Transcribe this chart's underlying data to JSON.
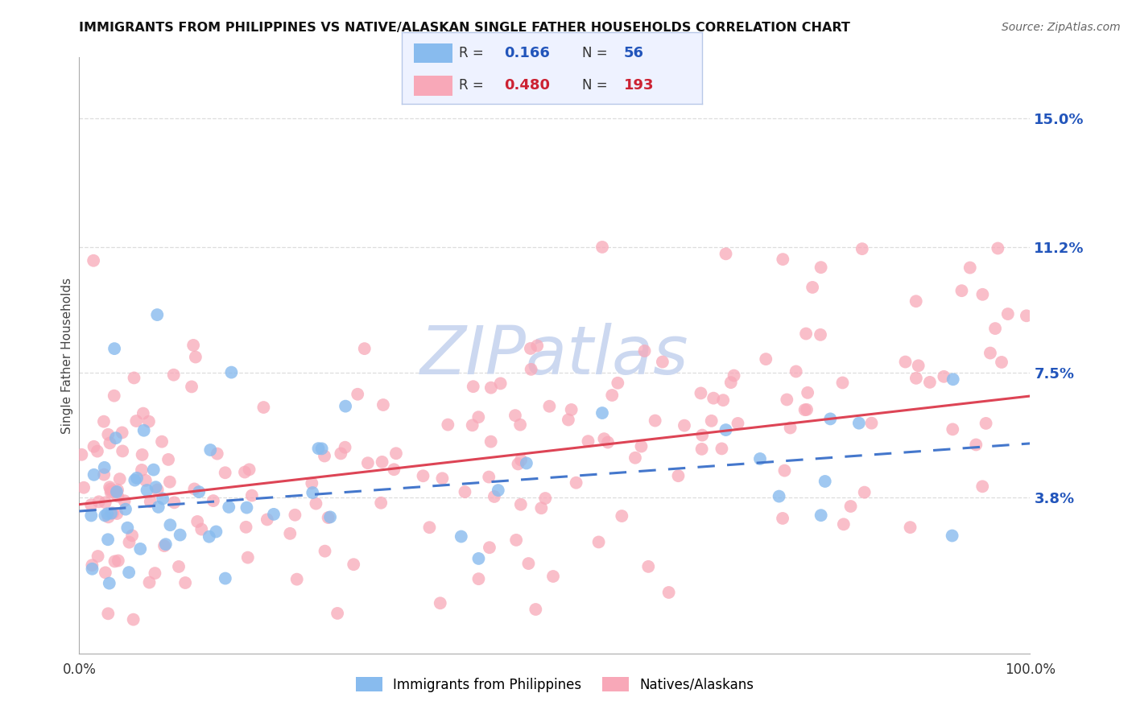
{
  "title": "IMMIGRANTS FROM PHILIPPINES VS NATIVE/ALASKAN SINGLE FATHER HOUSEHOLDS CORRELATION CHART",
  "source": "Source: ZipAtlas.com",
  "ylabel": "Single Father Households",
  "ytick_labels": [
    "3.8%",
    "7.5%",
    "11.2%",
    "15.0%"
  ],
  "ytick_values": [
    0.038,
    0.075,
    0.112,
    0.15
  ],
  "xlim": [
    0.0,
    1.0
  ],
  "ylim": [
    -0.008,
    0.168
  ],
  "legend_label_blue": "Immigrants from Philippines",
  "legend_label_pink": "Natives/Alaskans",
  "blue_scatter_color": "#88bbee",
  "pink_scatter_color": "#f8a8b8",
  "blue_line_color": "#4477cc",
  "pink_line_color": "#dd4455",
  "blue_R": "0.166",
  "blue_N": "56",
  "pink_R": "0.480",
  "pink_N": "193",
  "blue_R_color": "#2255bb",
  "pink_R_color": "#cc2233",
  "grid_color": "#dddddd",
  "watermark_text": "ZIPatlas",
  "watermark_color": "#ccd8f0",
  "background_color": "#ffffff",
  "title_fontsize": 11.5,
  "source_fontsize": 10,
  "ytick_fontsize": 13,
  "legend_fontsize": 12,
  "ylabel_fontsize": 11,
  "blue_line_start_y": 0.034,
  "blue_line_end_y": 0.054,
  "pink_line_start_y": 0.036,
  "pink_line_end_y": 0.068
}
